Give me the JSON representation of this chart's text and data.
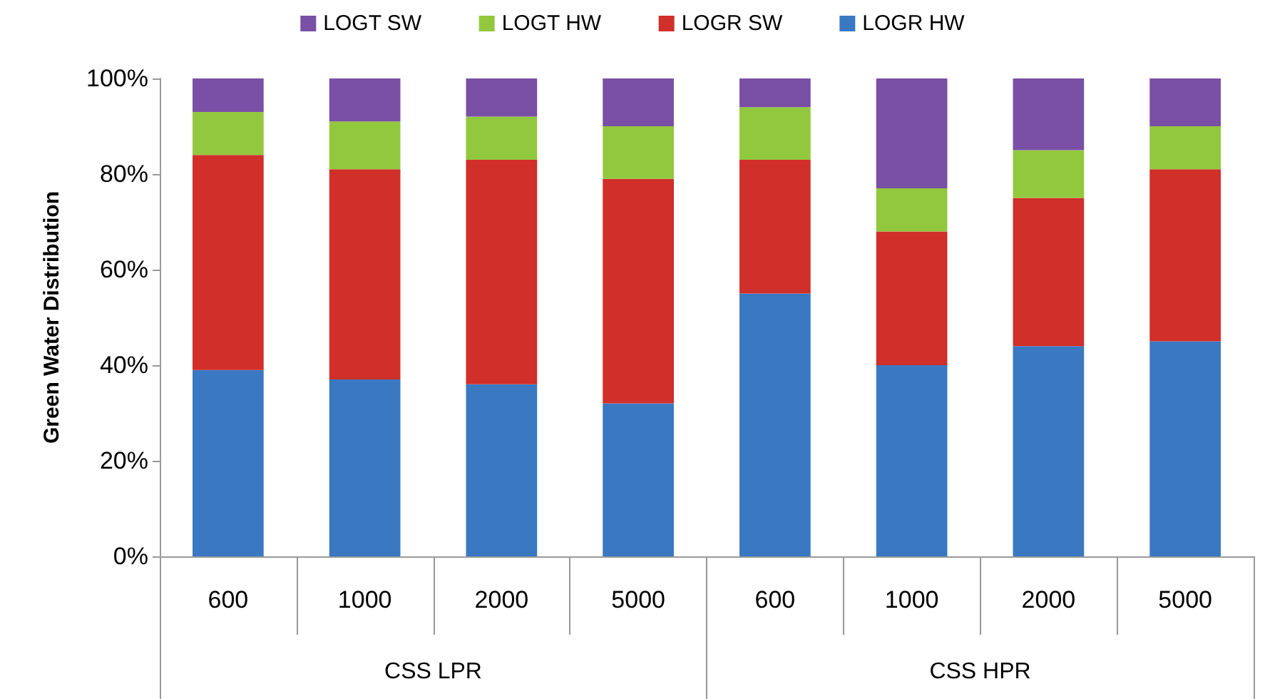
{
  "chart_data": {
    "type": "bar",
    "stacked": true,
    "ylabel": "Green Water Distribution",
    "categories": [
      "600",
      "1000",
      "2000",
      "5000",
      "600",
      "1000",
      "2000",
      "5000"
    ],
    "annotations": [
      "CSS LPR",
      "CSS HPR"
    ],
    "series": [
      {
        "name": "LOGR HW",
        "color": "#3a78c2",
        "values": [
          39,
          37,
          36,
          32,
          55,
          40,
          44,
          45
        ]
      },
      {
        "name": "LOGR SW",
        "color": "#d02f2a",
        "values": [
          45,
          44,
          47,
          47,
          28,
          28,
          31,
          36
        ]
      },
      {
        "name": "LOGT HW",
        "color": "#92c83e",
        "values": [
          9,
          10,
          9,
          11,
          11,
          9,
          10,
          9
        ]
      },
      {
        "name": "LOGT SW",
        "color": "#7a4fa6",
        "values": [
          7,
          9,
          8,
          10,
          6,
          23,
          15,
          10
        ]
      }
    ],
    "ylim": [
      0,
      100
    ],
    "yticks": [
      {
        "value": 0,
        "label": "0%"
      },
      {
        "value": 20,
        "label": "20%"
      },
      {
        "value": 40,
        "label": "40%"
      },
      {
        "value": 60,
        "label": "60%"
      },
      {
        "value": 80,
        "label": "80%"
      },
      {
        "value": 100,
        "label": "100%"
      }
    ],
    "grid": false,
    "legend": "top"
  }
}
